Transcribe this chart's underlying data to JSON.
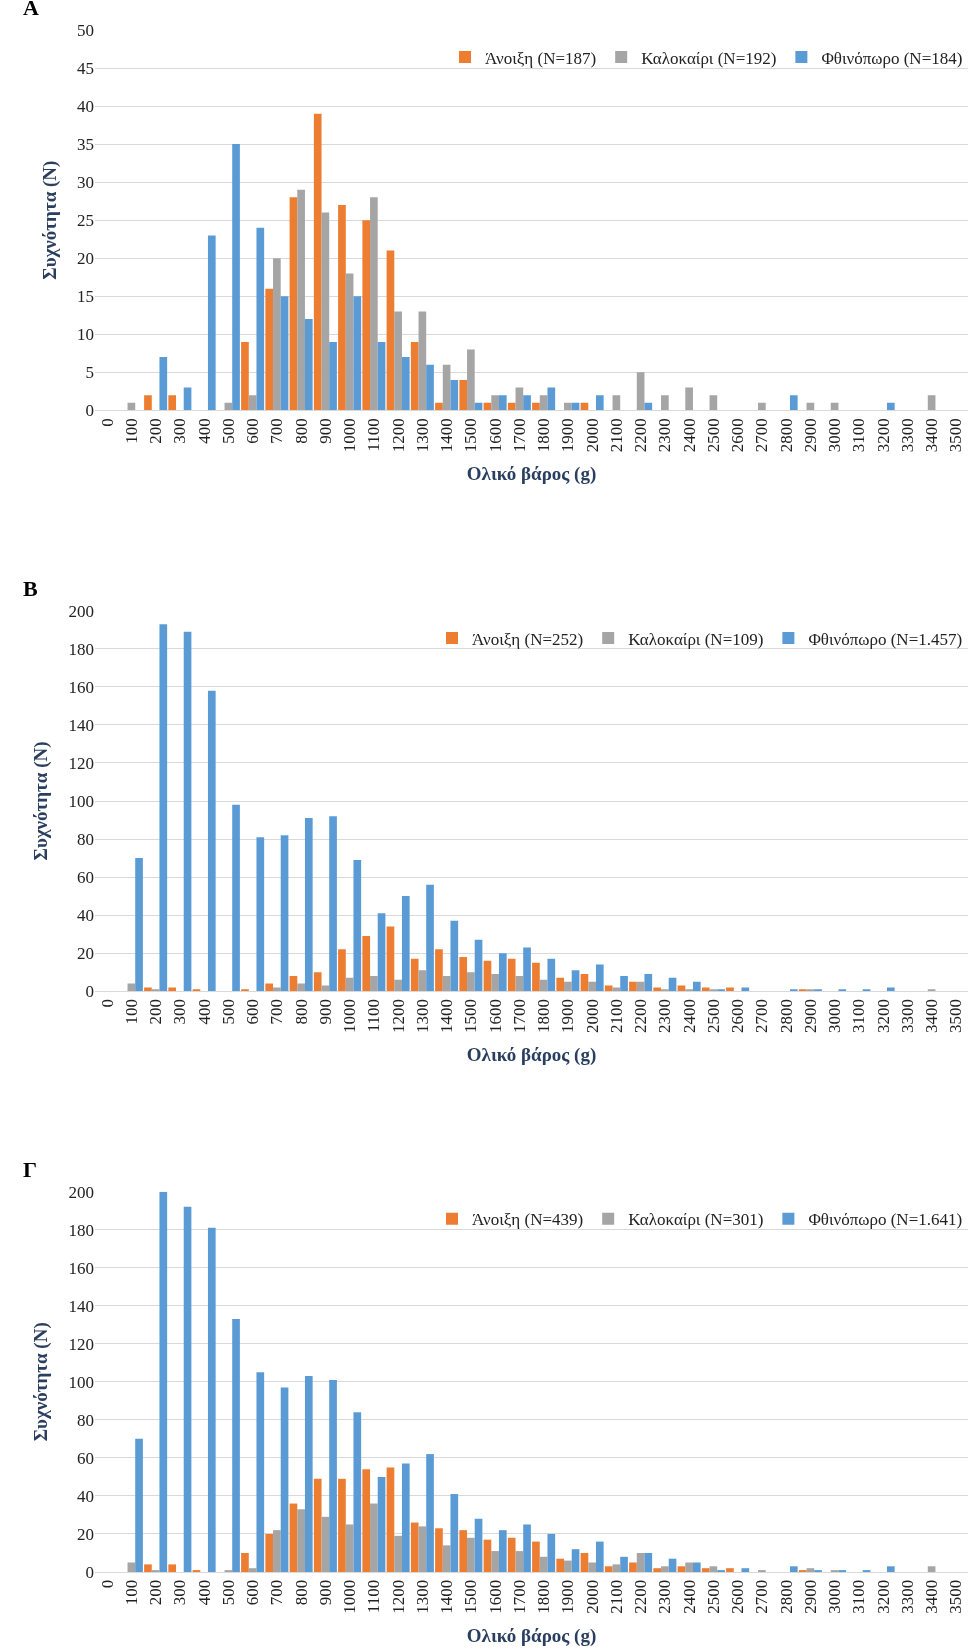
{
  "chart_data": [
    {
      "type": "bar",
      "title": "A",
      "xlabel": "Ολικό βάρος (g)",
      "ylabel": "Συχνότητα (N)",
      "grid": "y",
      "legend": "top right",
      "categories": [
        "0",
        "100",
        "200",
        "300",
        "400",
        "500",
        "600",
        "700",
        "800",
        "900",
        "1000",
        "1100",
        "1200",
        "1300",
        "1400",
        "1500",
        "1600",
        "1700",
        "1800",
        "1900",
        "2000",
        "2100",
        "2200",
        "2300",
        "2400",
        "2500",
        "2600",
        "2700",
        "2800",
        "2900",
        "3000",
        "3100",
        "3200",
        "3300",
        "3400",
        "3500"
      ],
      "ylim": [
        0,
        50
      ],
      "yticks": [
        0,
        5,
        10,
        15,
        20,
        25,
        30,
        35,
        40,
        45,
        50
      ],
      "series": [
        {
          "name": "Άνοιξη (N=187)",
          "color": "#ed7d31",
          "values": [
            0,
            0,
            2,
            2,
            0,
            0,
            9,
            16,
            28,
            39,
            27,
            25,
            21,
            9,
            1,
            4,
            1,
            1,
            1,
            0,
            1,
            0,
            0,
            0,
            0,
            0,
            0,
            0,
            0,
            0,
            0,
            0,
            0,
            0,
            0,
            0
          ]
        },
        {
          "name": "Καλοκαίρι (N=192)",
          "color": "#a5a5a5",
          "values": [
            0,
            1,
            0,
            0,
            0,
            1,
            2,
            20,
            29,
            26,
            18,
            28,
            13,
            13,
            6,
            8,
            2,
            3,
            2,
            1,
            0,
            2,
            5,
            2,
            3,
            2,
            0,
            1,
            0,
            1,
            1,
            0,
            0,
            0,
            2,
            0
          ]
        },
        {
          "name": "Φθινόπωρο (N=184)",
          "color": "#5b9bd5",
          "values": [
            0,
            0,
            7,
            3,
            23,
            35,
            24,
            15,
            12,
            9,
            15,
            9,
            7,
            6,
            4,
            1,
            2,
            2,
            3,
            1,
            2,
            0,
            1,
            0,
            0,
            0,
            0,
            0,
            2,
            0,
            0,
            0,
            1,
            0,
            0,
            0
          ]
        }
      ]
    },
    {
      "type": "bar",
      "title": "B",
      "xlabel": "Ολικό βάρος (g)",
      "ylabel": "Συχνότητα (N)",
      "grid": "y",
      "legend": "top right",
      "categories": [
        "0",
        "100",
        "200",
        "300",
        "400",
        "500",
        "600",
        "700",
        "800",
        "900",
        "1000",
        "1100",
        "1200",
        "1300",
        "1400",
        "1500",
        "1600",
        "1700",
        "1800",
        "1900",
        "2000",
        "2100",
        "2200",
        "2300",
        "2400",
        "2500",
        "2600",
        "2700",
        "2800",
        "2900",
        "3000",
        "3100",
        "3200",
        "3300",
        "3400",
        "3500"
      ],
      "ylim": [
        0,
        200
      ],
      "yticks": [
        0,
        20,
        40,
        60,
        80,
        100,
        120,
        140,
        160,
        180,
        200
      ],
      "series": [
        {
          "name": "Άνοιξη (N=252)",
          "color": "#ed7d31",
          "values": [
            0,
            0,
            2,
            2,
            1,
            0,
            1,
            4,
            8,
            10,
            22,
            29,
            34,
            17,
            22,
            18,
            16,
            17,
            15,
            7,
            9,
            3,
            5,
            2,
            3,
            2,
            2,
            0,
            0,
            1,
            0,
            0,
            0,
            0,
            0,
            0
          ]
        },
        {
          "name": "Καλοκαίρι (N=109)",
          "color": "#a5a5a5",
          "values": [
            0,
            4,
            1,
            0,
            0,
            0,
            0,
            2,
            4,
            3,
            7,
            8,
            6,
            11,
            8,
            10,
            9,
            8,
            6,
            5,
            5,
            2,
            5,
            1,
            1,
            1,
            0,
            0,
            0,
            1,
            0,
            0,
            0,
            0,
            1,
            0
          ]
        },
        {
          "name": "Φθινόπωρο (N=1.457)",
          "color": "#5b9bd5",
          "values": [
            0,
            70,
            193,
            189,
            158,
            98,
            81,
            82,
            91,
            92,
            69,
            41,
            50,
            56,
            37,
            27,
            20,
            23,
            17,
            11,
            14,
            8,
            9,
            7,
            5,
            1,
            2,
            0,
            1,
            1,
            1,
            1,
            2,
            0,
            0,
            0
          ]
        }
      ]
    },
    {
      "type": "bar",
      "title": "Γ",
      "xlabel": "Ολικό βάρος (g)",
      "ylabel": "Συχνότητα (N)",
      "grid": "y",
      "legend": "top right",
      "categories": [
        "0",
        "100",
        "200",
        "300",
        "400",
        "500",
        "600",
        "700",
        "800",
        "900",
        "1000",
        "1100",
        "1200",
        "1300",
        "1400",
        "1500",
        "1600",
        "1700",
        "1800",
        "1900",
        "2000",
        "2100",
        "2200",
        "2300",
        "2400",
        "2500",
        "2600",
        "2700",
        "2800",
        "2900",
        "3000",
        "3100",
        "3200",
        "3300",
        "3400",
        "3500"
      ],
      "ylim": [
        0,
        200
      ],
      "yticks": [
        0,
        20,
        40,
        60,
        80,
        100,
        120,
        140,
        160,
        180,
        200
      ],
      "series": [
        {
          "name": "Άνοιξη (N=439)",
          "color": "#ed7d31",
          "values": [
            0,
            0,
            4,
            4,
            1,
            0,
            10,
            20,
            36,
            49,
            49,
            54,
            55,
            26,
            23,
            22,
            17,
            18,
            16,
            7,
            10,
            3,
            5,
            2,
            3,
            2,
            2,
            0,
            0,
            1,
            0,
            0,
            0,
            0,
            0,
            0
          ]
        },
        {
          "name": "Καλοκαίρι (N=301)",
          "color": "#a5a5a5",
          "values": [
            0,
            5,
            1,
            0,
            0,
            1,
            2,
            22,
            33,
            29,
            25,
            36,
            19,
            24,
            14,
            18,
            11,
            11,
            8,
            6,
            5,
            4,
            10,
            3,
            5,
            3,
            0,
            1,
            0,
            2,
            1,
            0,
            0,
            0,
            3,
            0
          ]
        },
        {
          "name": "Φθινόπωρο (N=1.641)",
          "color": "#5b9bd5",
          "values": [
            0,
            70,
            200,
            192,
            181,
            133,
            105,
            97,
            103,
            101,
            84,
            50,
            57,
            62,
            41,
            28,
            22,
            25,
            20,
            12,
            16,
            8,
            10,
            7,
            5,
            1,
            2,
            0,
            3,
            1,
            1,
            1,
            3,
            0,
            0,
            0
          ]
        }
      ]
    }
  ]
}
